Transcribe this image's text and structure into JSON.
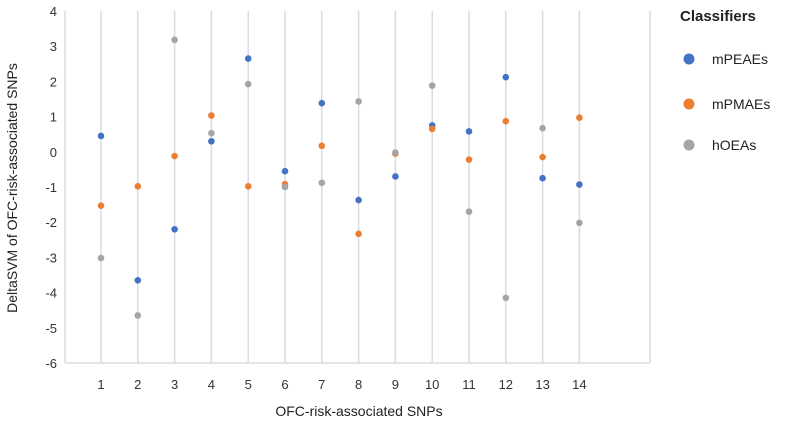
{
  "chart_data": {
    "type": "scatter",
    "xlabel": "OFC-risk-associated SNPs",
    "ylabel": "DeltaSVM of OFC-risk-associated SNPs",
    "ylim": [
      -6,
      4
    ],
    "yticks": [
      "4",
      "3",
      "2",
      "1",
      "0",
      "-1",
      "-2",
      "-3",
      "-4",
      "-5",
      "-6"
    ],
    "categories": [
      "1",
      "2",
      "3",
      "4",
      "5",
      "6",
      "7",
      "8",
      "9",
      "10",
      "11",
      "12",
      "13",
      "14"
    ],
    "grid": "vertical",
    "legend": {
      "title": "Classifiers",
      "placement": "right"
    },
    "series": [
      {
        "name": "mPEAEs",
        "color": "#4472C4",
        "values": [
          0.45,
          -3.65,
          -2.2,
          0.3,
          2.65,
          -0.55,
          1.38,
          -1.37,
          -0.7,
          0.75,
          0.58,
          2.12,
          -0.75,
          -0.93
        ]
      },
      {
        "name": "mPMAEs",
        "color": "#ED7D31",
        "values": [
          -1.53,
          -0.98,
          -0.12,
          1.03,
          -0.98,
          -0.92,
          0.17,
          -2.33,
          -0.05,
          0.65,
          -0.22,
          0.87,
          -0.15,
          0.97
        ]
      },
      {
        "name": "hOEAs",
        "color": "#A5A5A5",
        "values": [
          -3.02,
          -4.65,
          3.18,
          0.53,
          1.92,
          -1.0,
          -0.88,
          1.43,
          -0.02,
          1.88,
          -1.7,
          -4.15,
          0.67,
          -2.02
        ]
      }
    ]
  }
}
